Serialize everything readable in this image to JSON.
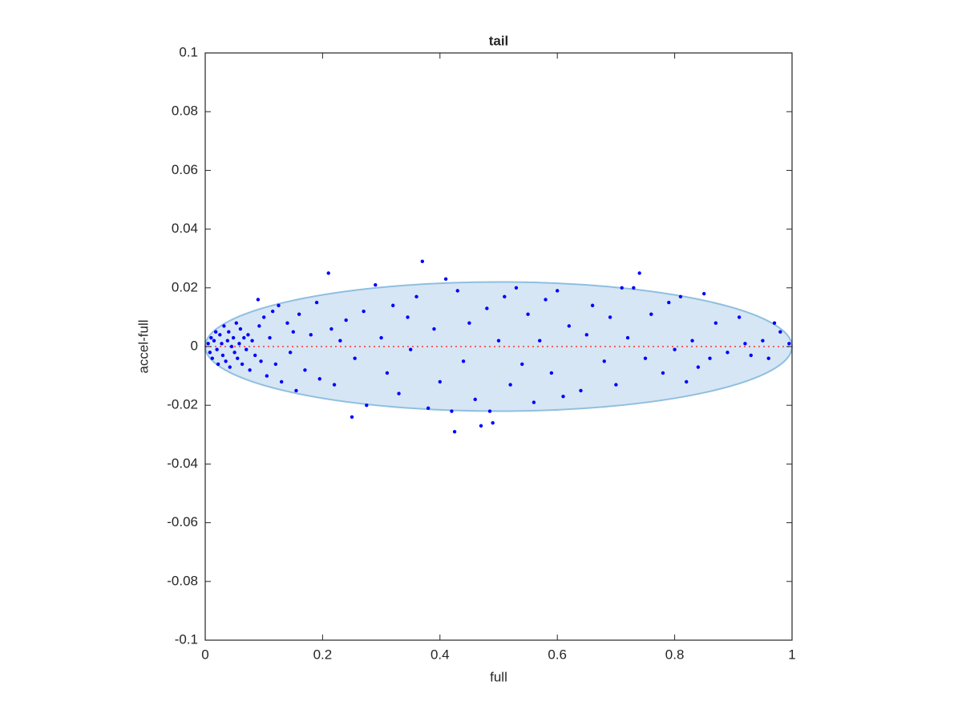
{
  "chart_data": {
    "type": "scatter",
    "title": "tail",
    "x_label": "full",
    "y_label": "accel-full",
    "xlim": [
      0,
      1
    ],
    "ylim": [
      -0.1,
      0.1
    ],
    "xticks": [
      0,
      0.2,
      0.4,
      0.6,
      0.8,
      1
    ],
    "yticks": [
      -0.1,
      -0.08,
      -0.06,
      -0.04,
      -0.02,
      0,
      0.02,
      0.04,
      0.06,
      0.08,
      0.1
    ],
    "grid": false,
    "ellipse": {
      "center": [
        0.5,
        0
      ],
      "radii": [
        0.5,
        0.022
      ],
      "fill": "#d6e6f4",
      "stroke": "#8fbfe0"
    },
    "reference_line": {
      "y": 0,
      "color": "#ff3333"
    },
    "series": [
      {
        "color": "#0000ff",
        "x": [
          0.005,
          0.008,
          0.01,
          0.012,
          0.015,
          0.018,
          0.02,
          0.022,
          0.025,
          0.028,
          0.03,
          0.032,
          0.035,
          0.038,
          0.04,
          0.042,
          0.045,
          0.048,
          0.05,
          0.053,
          0.055,
          0.058,
          0.06,
          0.063,
          0.066,
          0.07,
          0.073,
          0.076,
          0.08,
          0.085,
          0.09,
          0.092,
          0.095,
          0.1,
          0.105,
          0.11,
          0.115,
          0.12,
          0.125,
          0.13,
          0.14,
          0.145,
          0.15,
          0.155,
          0.16,
          0.17,
          0.18,
          0.19,
          0.195,
          0.21,
          0.215,
          0.22,
          0.23,
          0.24,
          0.25,
          0.255,
          0.27,
          0.275,
          0.29,
          0.3,
          0.31,
          0.32,
          0.33,
          0.345,
          0.35,
          0.36,
          0.37,
          0.38,
          0.39,
          0.4,
          0.41,
          0.42,
          0.425,
          0.43,
          0.44,
          0.45,
          0.46,
          0.47,
          0.48,
          0.485,
          0.49,
          0.5,
          0.51,
          0.52,
          0.53,
          0.54,
          0.55,
          0.56,
          0.57,
          0.58,
          0.59,
          0.6,
          0.61,
          0.62,
          0.64,
          0.65,
          0.66,
          0.68,
          0.69,
          0.7,
          0.71,
          0.72,
          0.73,
          0.74,
          0.75,
          0.76,
          0.78,
          0.79,
          0.8,
          0.81,
          0.82,
          0.83,
          0.84,
          0.85,
          0.86,
          0.87,
          0.89,
          0.91,
          0.92,
          0.93,
          0.95,
          0.96,
          0.97,
          0.98,
          0.995
        ],
        "values": [
          0.001,
          -0.002,
          0.003,
          -0.004,
          0.002,
          0.005,
          -0.001,
          -0.006,
          0.004,
          0.001,
          -0.003,
          0.007,
          -0.005,
          0.002,
          0.005,
          -0.007,
          0,
          0.003,
          -0.002,
          0.008,
          -0.004,
          0.001,
          0.006,
          -0.006,
          0.003,
          -0.001,
          0.004,
          -0.008,
          0.002,
          -0.003,
          0.016,
          0.007,
          -0.005,
          0.01,
          -0.01,
          0.003,
          0.012,
          -0.006,
          0.014,
          -0.012,
          0.008,
          -0.002,
          0.005,
          -0.015,
          0.011,
          -0.008,
          0.004,
          0.015,
          -0.011,
          0.025,
          0.006,
          -0.013,
          0.002,
          0.009,
          -0.024,
          -0.004,
          0.012,
          -0.02,
          0.021,
          0.003,
          -0.009,
          0.014,
          -0.016,
          0.01,
          -0.001,
          0.017,
          0.029,
          -0.021,
          0.006,
          -0.012,
          0.023,
          -0.022,
          -0.029,
          0.019,
          -0.005,
          0.008,
          -0.018,
          -0.027,
          0.013,
          -0.022,
          -0.026,
          0.002,
          0.017,
          -0.013,
          0.02,
          -0.006,
          0.011,
          -0.019,
          0.002,
          0.016,
          -0.009,
          0.019,
          -0.017,
          0.007,
          -0.015,
          0.004,
          0.014,
          -0.005,
          0.01,
          -0.013,
          0.02,
          0.003,
          0.02,
          0.025,
          -0.004,
          0.011,
          -0.009,
          0.015,
          -0.001,
          0.017,
          -0.012,
          0.002,
          -0.007,
          0.018,
          -0.004,
          0.008,
          -0.002,
          0.01,
          0.001,
          -0.003,
          0.002,
          -0.004,
          0.008,
          0.005,
          0.001
        ]
      }
    ]
  }
}
